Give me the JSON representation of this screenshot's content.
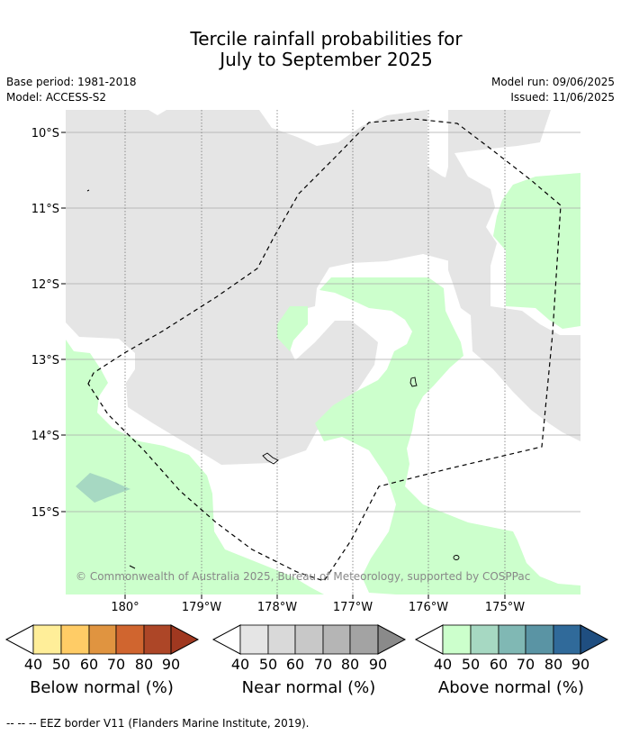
{
  "title": {
    "line1": "Tercile rainfall probabilities for",
    "line2": "July to September 2025"
  },
  "meta": {
    "base_period": "Base period: 1981-2018",
    "model": "Model: ACCESS-S2",
    "model_run": "Model run: 09/06/2025",
    "issued": "Issued: 11/06/2025"
  },
  "map": {
    "lat_labels": [
      "10°S",
      "11°S",
      "12°S",
      "13°S",
      "14°S",
      "15°S"
    ],
    "lon_labels": [
      "180°",
      "179°W",
      "178°W",
      "177°W",
      "176°W",
      "175°W"
    ],
    "copyright": "© Commonwealth of Australia 2025, Bureau of Meteorology, supported by COSPPac",
    "colors": {
      "near_normal": "#e5e5e5",
      "above_40": "#ccffcc",
      "above_50": "#a6d8c2",
      "land_outline": "#000000",
      "grid": "#999999"
    }
  },
  "colorbars": [
    {
      "label": "Below normal (%)",
      "ticks": [
        "40",
        "50",
        "60",
        "70",
        "80",
        "90"
      ],
      "colors": [
        "#ffee99",
        "#ffcc66",
        "#e09440",
        "#d0652f",
        "#ad4627",
        "#a03820"
      ]
    },
    {
      "label": "Near normal (%)",
      "ticks": [
        "40",
        "50",
        "60",
        "70",
        "80",
        "90"
      ],
      "colors": [
        "#e5e5e5",
        "#d9d9d9",
        "#c8c8c8",
        "#b5b5b5",
        "#a3a3a3",
        "#8a8a8a"
      ]
    },
    {
      "label": "Above normal (%)",
      "ticks": [
        "40",
        "50",
        "60",
        "70",
        "80",
        "90"
      ],
      "colors": [
        "#ccffcc",
        "#a6d8c2",
        "#80b8b4",
        "#5a94a4",
        "#306a9a",
        "#1f4e80"
      ]
    }
  ],
  "footer": "--  --  -- EEZ border V11 (Flanders Marine Institute, 2019)."
}
